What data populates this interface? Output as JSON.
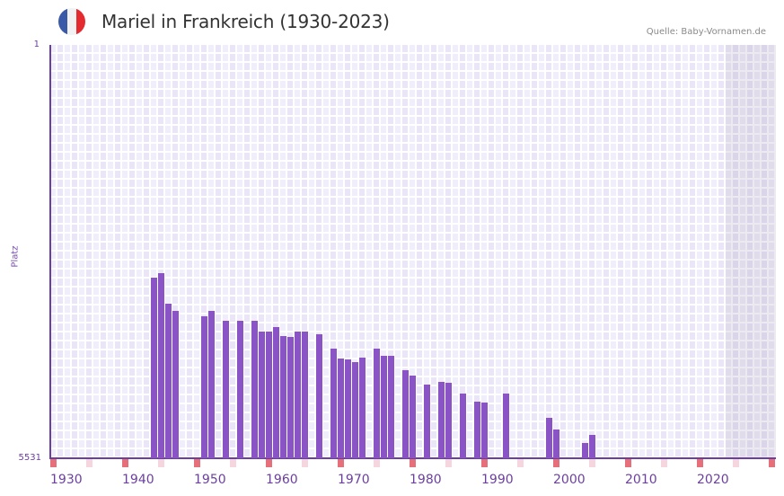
{
  "header": {
    "title": "Mariel in Frankreich (1930-2023)",
    "source": "Quelle: Baby-Vornamen.de",
    "flag_colors": [
      "#3a5aa8",
      "#f2f2f2",
      "#e42b2f"
    ]
  },
  "axis": {
    "ylabel": "Platz",
    "ytick_top": "1",
    "ytick_bottom": "5531",
    "xticks": [
      "1930",
      "1940",
      "1950",
      "1960",
      "1970",
      "1980",
      "1990",
      "2000",
      "2010",
      "2020"
    ]
  },
  "colors": {
    "bar": "#8a53c6",
    "axis": "#6b3fa0",
    "decade_marker": "#e5707a",
    "half_decade_marker": "#f5d5de"
  },
  "chart_data": {
    "type": "bar",
    "title": "Mariel in Frankreich (1930-2023)",
    "xlabel": "",
    "ylabel": "Platz",
    "ylim": [
      5531,
      1
    ],
    "xlim": [
      1930,
      2030
    ],
    "inverted_y": true,
    "grid": true,
    "note": "Rank (Platz); lower rank = taller bar. Shaded area marks years beyond 2023.",
    "categories": [
      1944,
      1945,
      1946,
      1947,
      1951,
      1952,
      1954,
      1956,
      1958,
      1959,
      1960,
      1961,
      1962,
      1963,
      1964,
      1965,
      1967,
      1969,
      1970,
      1971,
      1972,
      1973,
      1975,
      1976,
      1977,
      1979,
      1980,
      1982,
      1984,
      1985,
      1987,
      1989,
      1990,
      1993,
      1999,
      2000,
      2004,
      2005
    ],
    "values": [
      3120,
      3060,
      3460,
      3560,
      3630,
      3560,
      3690,
      3690,
      3690,
      3830,
      3840,
      3780,
      3900,
      3910,
      3830,
      3840,
      3870,
      4070,
      4200,
      4210,
      4250,
      4190,
      4060,
      4160,
      4160,
      4350,
      4420,
      4540,
      4510,
      4520,
      4670,
      4770,
      4780,
      4660,
      4990,
      5150,
      5330,
      5220
    ]
  }
}
